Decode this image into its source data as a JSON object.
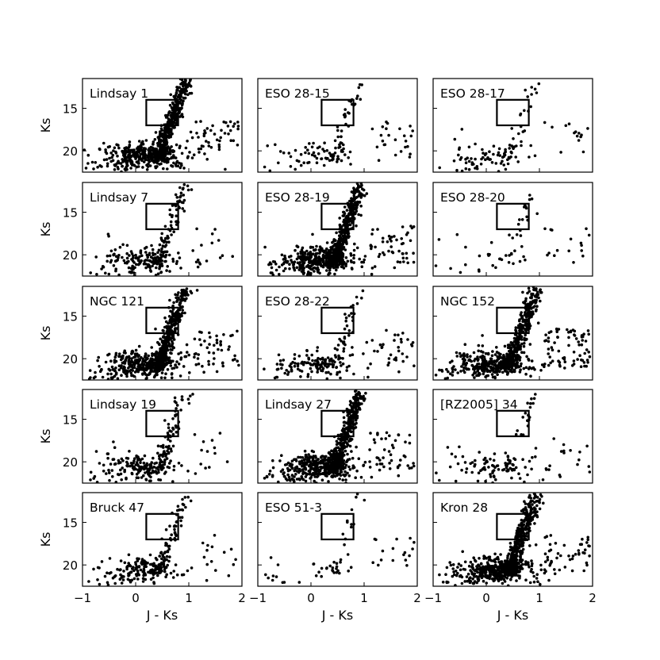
{
  "figure": {
    "xlabel": "J - Ks",
    "ylabel": "Ks",
    "xlim": [
      -1,
      2
    ],
    "ylim": [
      22.5,
      11.5
    ],
    "xticks": [
      "−1",
      "0",
      "1",
      "2"
    ],
    "yticks": [
      "15",
      "20"
    ],
    "marker_color": "#000000",
    "box": {
      "x": [
        0.2,
        0.8
      ],
      "y": [
        14.0,
        17.0
      ]
    }
  },
  "chart_data": [
    {
      "type": "scatter",
      "title": "Lindsay 1",
      "profile": "dense",
      "seed": 1
    },
    {
      "type": "scatter",
      "title": "ESO 28-15",
      "profile": "sparse",
      "seed": 2
    },
    {
      "type": "scatter",
      "title": "ESO 28-17",
      "profile": "sparse-red",
      "seed": 3
    },
    {
      "type": "scatter",
      "title": "Lindsay 7",
      "profile": "medium",
      "seed": 4
    },
    {
      "type": "scatter",
      "title": "ESO 28-19",
      "profile": "dense",
      "seed": 5
    },
    {
      "type": "scatter",
      "title": "ESO 28-20",
      "profile": "very-sparse",
      "seed": 6
    },
    {
      "type": "scatter",
      "title": "NGC 121",
      "profile": "dense",
      "seed": 7
    },
    {
      "type": "scatter",
      "title": "ESO 28-22",
      "profile": "medium-faint",
      "seed": 8
    },
    {
      "type": "scatter",
      "title": "NGC 152",
      "profile": "dense-red",
      "seed": 9
    },
    {
      "type": "scatter",
      "title": "Lindsay 19",
      "profile": "medium",
      "seed": 10
    },
    {
      "type": "scatter",
      "title": "Lindsay 27",
      "profile": "dense",
      "seed": 11
    },
    {
      "type": "scatter",
      "title": "[RZ2005] 34",
      "profile": "sparse-wide",
      "seed": 12
    },
    {
      "type": "scatter",
      "title": "Bruck 47",
      "profile": "medium",
      "seed": 13
    },
    {
      "type": "scatter",
      "title": "ESO 51-3",
      "profile": "very-sparse",
      "seed": 14
    },
    {
      "type": "scatter",
      "title": "Kron 28",
      "profile": "dense",
      "seed": 15
    }
  ]
}
